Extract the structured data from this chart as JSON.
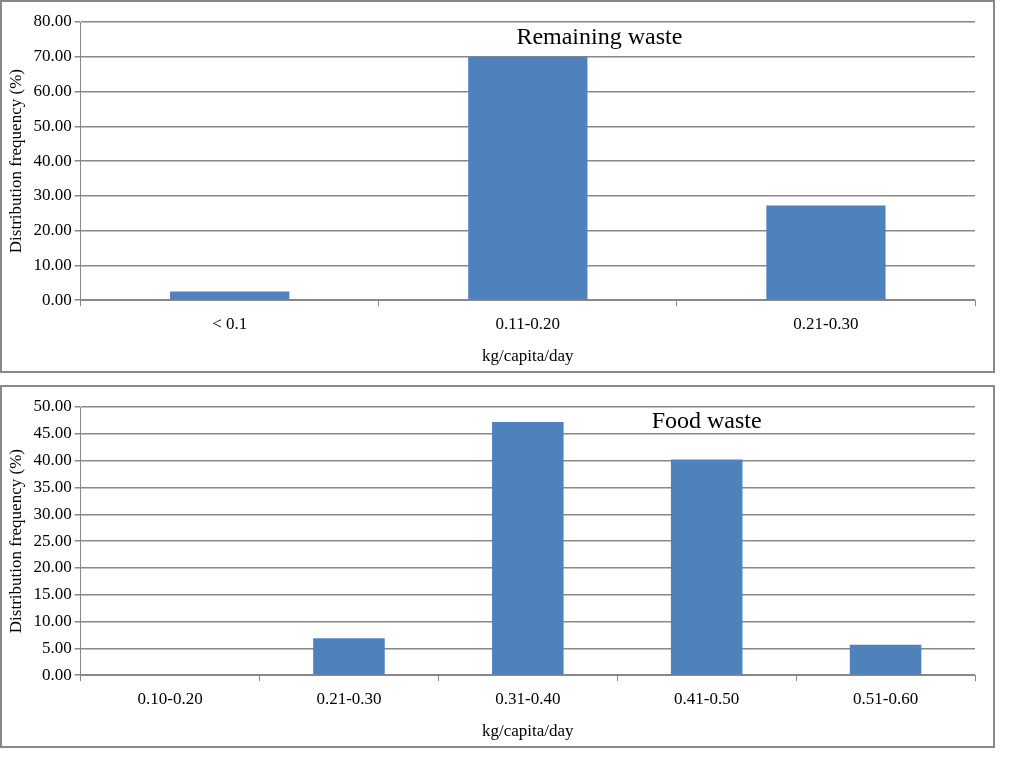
{
  "chart_data": [
    {
      "type": "bar",
      "title": "Remaining waste",
      "xlabel": "kg/capita/day",
      "ylabel": "Distribution frequency (%)",
      "categories": [
        "< 0.1",
        "0.11-0.20",
        "0.21-0.30"
      ],
      "values": [
        2.5,
        70,
        27.2
      ],
      "color": "#4f81bd",
      "ylim": [
        0,
        80
      ],
      "yticks": [
        {
          "value": 0,
          "label": "0.00"
        },
        {
          "value": 10,
          "label": "10.00"
        },
        {
          "value": 20,
          "label": "20.00"
        },
        {
          "value": 30,
          "label": "30.00"
        },
        {
          "value": 40,
          "label": "40.00"
        },
        {
          "value": 50,
          "label": "50.00"
        },
        {
          "value": 60,
          "label": "60.00"
        },
        {
          "value": 70,
          "label": "70.00"
        },
        {
          "value": 80,
          "label": "80.00"
        }
      ],
      "grid": "y",
      "legend": false
    },
    {
      "type": "bar",
      "title": "Food waste",
      "xlabel": "kg/capita/day",
      "ylabel": "Distribution frequency (%)",
      "categories": [
        "0.10-0.20",
        "0.21-0.30",
        "0.31-0.40",
        "0.41-0.50",
        "0.51-0.60"
      ],
      "values": [
        0,
        6.9,
        47.2,
        40.2,
        5.7
      ],
      "color": "#4f81bd",
      "ylim": [
        0,
        50
      ],
      "yticks": [
        {
          "value": 0,
          "label": "0.00"
        },
        {
          "value": 5,
          "label": "5.00"
        },
        {
          "value": 10,
          "label": "10.00"
        },
        {
          "value": 15,
          "label": "15.00"
        },
        {
          "value": 20,
          "label": "20.00"
        },
        {
          "value": 25,
          "label": "25.00"
        },
        {
          "value": 30,
          "label": "30.00"
        },
        {
          "value": 35,
          "label": "35.00"
        },
        {
          "value": 40,
          "label": "40.00"
        },
        {
          "value": 45,
          "label": "45.00"
        },
        {
          "value": 50,
          "label": "50.00"
        }
      ],
      "grid": "y",
      "legend": false
    }
  ]
}
